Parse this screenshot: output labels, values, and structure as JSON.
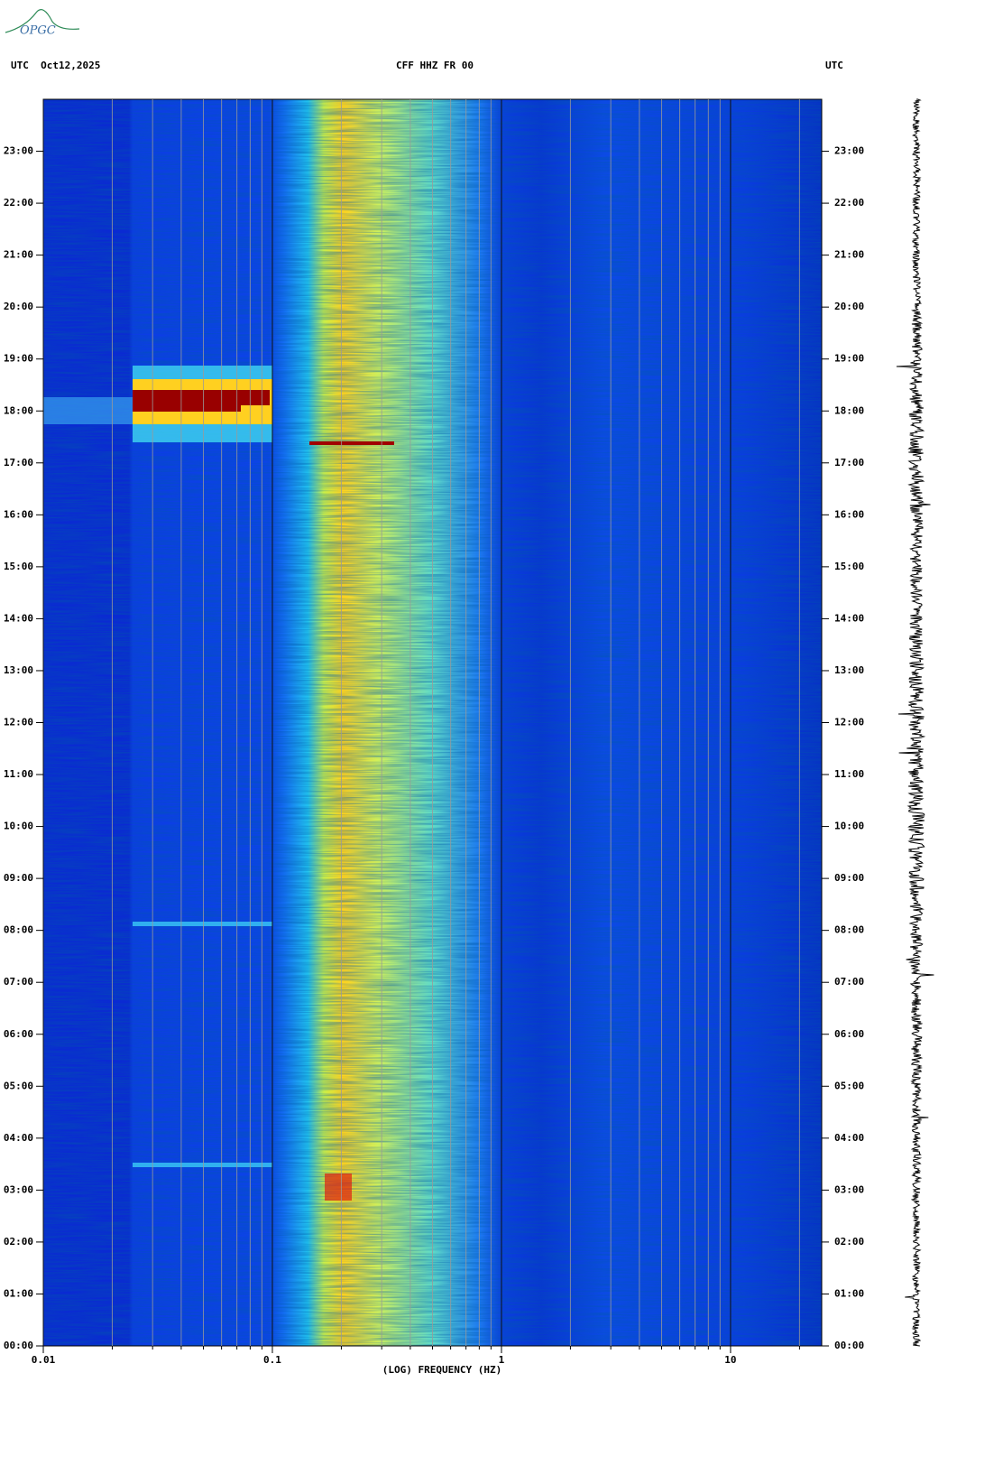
{
  "chart_data": {
    "type": "spectrogram",
    "logo": "OPGC",
    "left_header": "UTC  Oct12,2025",
    "title": "CFF HHZ FR 00",
    "right_header": "UTC",
    "xlabel": "(LOG) FREQUENCY (HZ)",
    "xscale": "log",
    "xlim": [
      0.01,
      25
    ],
    "xticks": [
      0.01,
      0.1,
      1,
      10
    ],
    "xminor": [
      0.02,
      0.03,
      0.04,
      0.05,
      0.06,
      0.07,
      0.08,
      0.09,
      0.2,
      0.3,
      0.4,
      0.5,
      0.6,
      0.7,
      0.8,
      0.9,
      2,
      3,
      4,
      5,
      6,
      7,
      8,
      9,
      20
    ],
    "ylim": [
      0,
      24
    ],
    "yticks": [
      {
        "value": 0,
        "label": "00:00"
      },
      {
        "value": 1,
        "label": "01:00"
      },
      {
        "value": 2,
        "label": "02:00"
      },
      {
        "value": 3,
        "label": "03:00"
      },
      {
        "value": 4,
        "label": "04:00"
      },
      {
        "value": 5,
        "label": "05:00"
      },
      {
        "value": 6,
        "label": "06:00"
      },
      {
        "value": 7,
        "label": "07:00"
      },
      {
        "value": 8,
        "label": "08:00"
      },
      {
        "value": 9,
        "label": "09:00"
      },
      {
        "value": 10,
        "label": "10:00"
      },
      {
        "value": 11,
        "label": "11:00"
      },
      {
        "value": 12,
        "label": "12:00"
      },
      {
        "value": 13,
        "label": "13:00"
      },
      {
        "value": 14,
        "label": "14:00"
      },
      {
        "value": 15,
        "label": "15:00"
      },
      {
        "value": 16,
        "label": "16:00"
      },
      {
        "value": 17,
        "label": "17:00"
      },
      {
        "value": 18,
        "label": "18:00"
      },
      {
        "value": 19,
        "label": "19:00"
      },
      {
        "value": 20,
        "label": "20:00"
      },
      {
        "value": 21,
        "label": "21:00"
      },
      {
        "value": 22,
        "label": "22:00"
      },
      {
        "value": 23,
        "label": "23:00"
      }
    ]
  }
}
